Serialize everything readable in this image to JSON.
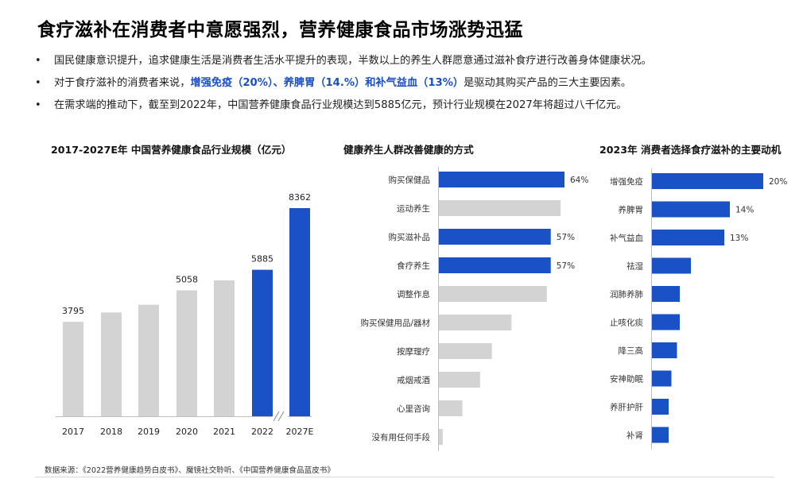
{
  "header": {
    "title": "食疗滋补在消费者中意愿强烈，营养健康食品市场涨势迅猛"
  },
  "bullets": [
    {
      "bullet": "•",
      "parts": [
        {
          "text": "国民健康意识提升，追求健康生活是消费者生活水平提升的表现，半数以上的养生人群愿意通过滋补食疗进行改善身体健康状况。",
          "highlight": false
        }
      ]
    },
    {
      "bullet": "•",
      "parts": [
        {
          "text": "对于食疗滋补的消费者来说，",
          "highlight": false
        },
        {
          "text": "增强免疫（20%）、养脾胃（14.%）和补气益血（13%）",
          "highlight": true
        },
        {
          "text": "是驱动其购买产品的三大主要因素。",
          "highlight": false
        }
      ]
    },
    {
      "bullet": "•",
      "parts": [
        {
          "text": "在需求端的推动下，截至到2022年，中国营养健康食品行业规模达到5885亿元，预计行业规模在2027年将超过八千亿元。",
          "highlight": false
        }
      ]
    }
  ],
  "colors": {
    "accent": "#1a52c6",
    "grey_bar": "#d3d3d3",
    "highlight_text": "#1a4fc2"
  },
  "chart_data": [
    {
      "type": "bar",
      "title": "2017-2027E年 中国营养健康食品行业规模（亿元）",
      "categories": [
        "2017",
        "2018",
        "2019",
        "2020",
        "2021",
        "2022",
        "2027E"
      ],
      "values": [
        3795,
        4170,
        4480,
        5058,
        5460,
        5885,
        8362
      ],
      "labels": [
        "3795",
        "",
        "",
        "5058",
        "",
        "5885",
        "8362"
      ],
      "highlight": [
        false,
        false,
        false,
        false,
        false,
        true,
        true
      ],
      "axis_break_before": "2027E",
      "ylim": [
        0,
        8362
      ]
    },
    {
      "type": "bar",
      "orientation": "horizontal",
      "title": "健康养生人群改善健康的方式",
      "categories": [
        "购买保健品",
        "运动养生",
        "购买滋补品",
        "食疗养生",
        "调整作息",
        "购买保健用品/器材",
        "按摩理疗",
        "戒烟戒酒",
        "心里咨询",
        "没有用任何手段"
      ],
      "values": [
        64,
        62,
        57,
        57,
        55,
        37,
        27,
        21,
        12,
        2
      ],
      "labels": [
        "64%",
        "",
        "57%",
        "57%",
        "",
        "",
        "",
        "",
        "",
        ""
      ],
      "highlight": [
        true,
        false,
        true,
        true,
        false,
        false,
        false,
        false,
        false,
        false
      ],
      "unit": "%"
    },
    {
      "type": "bar",
      "orientation": "horizontal",
      "title": "2023年 消费者选择食疗滋补的主要动机",
      "categories": [
        "增强免疫",
        "养脾胃",
        "补气益血",
        "祛湿",
        "润肺养肺",
        "止咳化痰",
        "降三高",
        "安神助眠",
        "养肝护肝",
        "补肾"
      ],
      "values": [
        20,
        14,
        13,
        7,
        5,
        5,
        4.5,
        3.5,
        3,
        3
      ],
      "labels": [
        "20%",
        "14%",
        "13%",
        "",
        "",
        "",
        "",
        "",
        "",
        ""
      ],
      "highlight": [
        true,
        true,
        true,
        true,
        true,
        true,
        true,
        true,
        true,
        true
      ],
      "unit": "%"
    }
  ],
  "source": {
    "text": "数据来源：《2022营养健康趋势白皮书》、魔镜社交聆听、《中国营养健康食品蓝皮书》"
  }
}
